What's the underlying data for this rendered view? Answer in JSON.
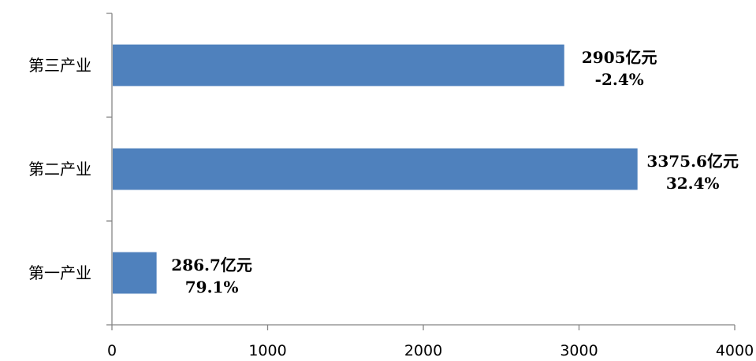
{
  "chart_data": {
    "type": "bar",
    "orientation": "horizontal",
    "categories": [
      "第三产业",
      "第二产业",
      "第一产业"
    ],
    "values": [
      2905,
      3375.6,
      286.7
    ],
    "value_labels": [
      "2905亿元",
      "3375.6亿元",
      "286.7亿元"
    ],
    "growth_labels": [
      "-2.4%",
      "32.4%",
      "79.1%"
    ],
    "x_ticks": [
      "0",
      "1000",
      "2000",
      "3000",
      "4000"
    ],
    "xlim": [
      0,
      4000
    ],
    "title": "",
    "xlabel": "",
    "ylabel": "",
    "grid": false,
    "legend": "none",
    "colors": {
      "bar": "#4f81bd",
      "axis": "#858585",
      "text": "#000000"
    }
  }
}
